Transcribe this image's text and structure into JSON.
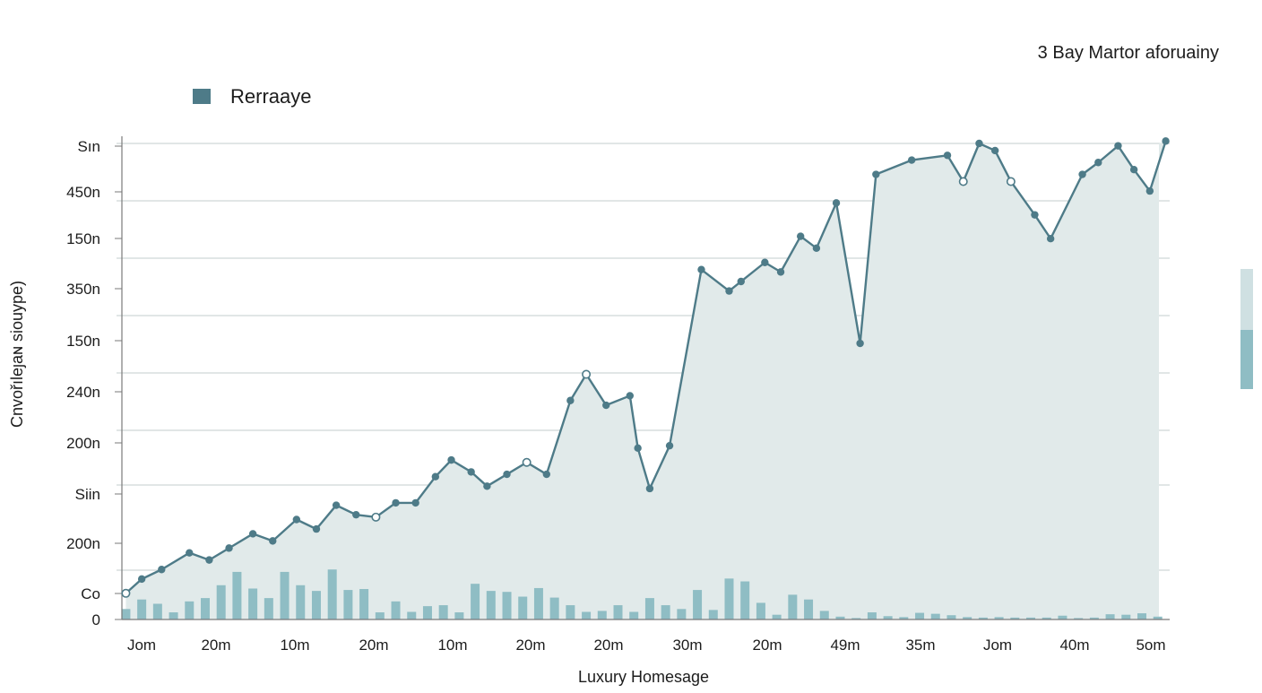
{
  "chart_data": {
    "type": "line",
    "subtitle": "3 Bay Martor aforuainy",
    "xlabel": "Luxury Homesage",
    "ylabel": "Cnvořıleȷaɴ siouype)",
    "legend": {
      "label": "Rerraaye",
      "placement": "top-left"
    },
    "y_tick_labels": [
      "0",
      "Co",
      "200n",
      "Siin",
      "200n",
      "240n",
      "150n",
      "350n",
      "150n",
      "450n",
      "Sın"
    ],
    "x_tick_labels": [
      "Jom",
      "20m",
      "10m",
      "20m",
      "10m",
      "20m",
      "20m",
      "30m",
      "20m",
      "49m",
      "35m",
      "Jom",
      "40m",
      "5om"
    ],
    "grid": true,
    "ylim": [
      0,
      10
    ],
    "colors": {
      "line": "#4e7b88",
      "area": "#e1eaea",
      "bars": "#8fbdc4",
      "legend_swatch": "#4e7b88"
    },
    "series": [
      {
        "name": "Rerraaye",
        "kind": "line",
        "x": [
          0.1,
          0.5,
          1.0,
          1.7,
          2.2,
          2.7,
          3.3,
          3.8,
          4.4,
          4.9,
          5.4,
          5.9,
          6.4,
          6.9,
          7.4,
          7.9,
          8.3,
          8.8,
          9.2,
          9.7,
          10.2,
          10.7,
          11.3,
          11.7,
          12.2,
          12.8,
          13.0,
          13.3,
          13.8,
          14.6,
          15.3,
          15.6,
          16.2,
          16.6,
          17.1,
          17.5,
          18.0,
          18.6,
          19.0,
          19.9,
          20.8,
          21.2,
          21.6,
          22.0,
          22.4,
          23.0,
          23.4,
          24.2,
          24.6,
          25.1,
          25.5,
          25.9,
          26.3
        ],
        "y": [
          0.55,
          0.85,
          1.05,
          1.4,
          1.25,
          1.5,
          1.8,
          1.65,
          2.1,
          1.9,
          2.4,
          2.2,
          2.15,
          2.45,
          2.45,
          3.0,
          3.35,
          3.1,
          2.8,
          3.05,
          3.3,
          3.05,
          4.6,
          5.15,
          4.5,
          4.7,
          3.6,
          2.75,
          3.65,
          7.35,
          6.9,
          7.1,
          7.5,
          7.3,
          8.05,
          7.8,
          8.75,
          5.8,
          9.35,
          9.65,
          9.75,
          9.2,
          10.0,
          9.85,
          9.2,
          8.5,
          8.0,
          9.35,
          9.6,
          9.95,
          9.45,
          9.0,
          10.05
        ],
        "hollow_markers": [
          0,
          12,
          20,
          23,
          41,
          44
        ]
      },
      {
        "kind": "bar",
        "x": [
          0.1,
          0.5,
          0.9,
          1.3,
          1.7,
          2.1,
          2.5,
          2.9,
          3.3,
          3.7,
          4.1,
          4.5,
          4.9,
          5.3,
          5.7,
          6.1,
          6.5,
          6.9,
          7.3,
          7.7,
          8.1,
          8.5,
          8.9,
          9.3,
          9.7,
          10.1,
          10.5,
          10.9,
          11.3,
          11.7,
          12.1,
          12.5,
          12.9,
          13.3,
          13.7,
          14.1,
          14.5,
          14.9,
          15.3,
          15.7,
          16.1,
          16.5,
          16.9,
          17.3,
          17.7,
          18.1,
          18.5,
          18.9,
          19.3,
          19.7,
          20.1,
          20.5,
          20.9,
          21.3,
          21.7,
          22.1,
          22.5,
          22.9,
          23.3,
          23.7,
          24.1,
          24.5,
          24.9,
          25.3,
          25.7,
          26.1
        ],
        "y": [
          0.22,
          0.42,
          0.33,
          0.15,
          0.38,
          0.45,
          0.72,
          1.0,
          0.65,
          0.45,
          1.0,
          0.72,
          0.6,
          1.05,
          0.62,
          0.64,
          0.15,
          0.38,
          0.16,
          0.28,
          0.3,
          0.15,
          0.75,
          0.6,
          0.58,
          0.48,
          0.66,
          0.46,
          0.3,
          0.16,
          0.18,
          0.3,
          0.16,
          0.45,
          0.3,
          0.22,
          0.62,
          0.2,
          0.86,
          0.8,
          0.35,
          0.1,
          0.52,
          0.42,
          0.18,
          0.06,
          0.03,
          0.15,
          0.07,
          0.05,
          0.14,
          0.12,
          0.09,
          0.05,
          0.04,
          0.05,
          0.04,
          0.04,
          0.04,
          0.08,
          0.03,
          0.04,
          0.11,
          0.1,
          0.13,
          0.06
        ]
      }
    ]
  }
}
